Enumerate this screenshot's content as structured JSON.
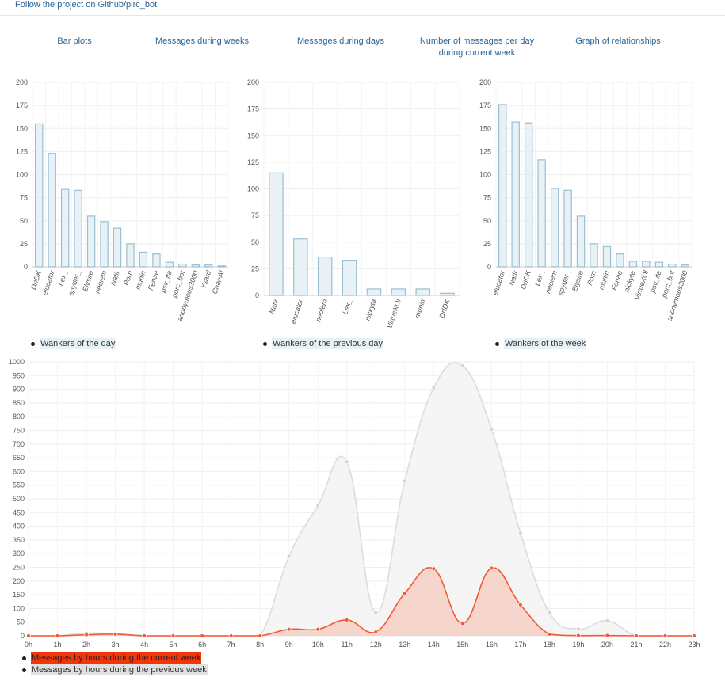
{
  "header": {
    "follow_link": "Follow the project on Github/pirc_bot"
  },
  "nav": {
    "bar_plots": "Bar plots",
    "weeks": "Messages during weeks",
    "days": "Messages during days",
    "per_day_line1": "Number of messages per day",
    "per_day_line2": "during current week",
    "relationships": "Graph of relationships"
  },
  "colors": {
    "bar_fill": "#e8f1f6",
    "bar_stroke": "#9bbfd2",
    "current_week": "#f15a35",
    "current_week_fill": "#f6cfc4",
    "previous_week": "#dcdcdc",
    "previous_week_fill": "#f2f2f2",
    "grid": "#eeeeee"
  },
  "chart_data": [
    {
      "type": "bar",
      "legend": "Wankers of the day",
      "categories": [
        "DrIDK",
        "elucator",
        "Lex_",
        "spyder_",
        "Elysire",
        "neolem",
        "Natir",
        "Porn",
        "munin",
        "Fenae",
        "psv_ita",
        "porc_bot",
        "anonymous3000",
        "Ysard",
        "Char-Al"
      ],
      "values": [
        155,
        123,
        84,
        83,
        55,
        49,
        42,
        25,
        16,
        14,
        5,
        3,
        2,
        2,
        1
      ],
      "ylim": [
        0,
        200
      ],
      "yticks": [
        "0",
        "25",
        "50",
        "75",
        "100",
        "125",
        "150",
        "175",
        "200"
      ]
    },
    {
      "type": "bar",
      "legend": "Wankers of the previous day",
      "categories": [
        "Natir",
        "elucator",
        "neolem",
        "Lex_",
        "nickyta",
        "VirtueXOl",
        "munin",
        "DrIDK"
      ],
      "values": [
        115,
        53,
        36,
        33,
        6,
        6,
        6,
        2
      ],
      "ylim": [
        0,
        200
      ],
      "yticks": [
        "0",
        "25",
        "50",
        "75",
        "100",
        "125",
        "150",
        "175",
        "200"
      ]
    },
    {
      "type": "bar",
      "legend": "Wankers of the week",
      "categories": [
        "elucator",
        "Natir",
        "DrIDK",
        "Lex_",
        "neolem",
        "spyder_",
        "Elysire",
        "Porn",
        "munin",
        "Fenae",
        "nickyta",
        "VirtueXOl",
        "psv_ita",
        "porc_bot",
        "anonymous3000"
      ],
      "values": [
        176,
        157,
        156,
        116,
        85,
        83,
        55,
        25,
        22,
        14,
        6,
        6,
        5,
        3,
        2
      ],
      "ylim": [
        0,
        200
      ],
      "yticks": [
        "0",
        "25",
        "50",
        "75",
        "100",
        "125",
        "150",
        "175",
        "200"
      ]
    },
    {
      "type": "area",
      "categories": [
        "0h",
        "1h",
        "2h",
        "3h",
        "4h",
        "5h",
        "6h",
        "7h",
        "8h",
        "9h",
        "10h",
        "11h",
        "12h",
        "13h",
        "14h",
        "15h",
        "16h",
        "17h",
        "18h",
        "19h",
        "20h",
        "21h",
        "22h",
        "23h"
      ],
      "series": [
        {
          "name": "Messages by hours during the current week",
          "values": [
            0,
            0,
            4,
            6,
            0,
            0,
            0,
            0,
            0,
            24,
            24,
            58,
            14,
            155,
            245,
            45,
            247,
            113,
            6,
            1,
            1,
            0,
            0,
            0
          ]
        },
        {
          "name": "Messages by hours during the previous week",
          "values": [
            0,
            0,
            10,
            8,
            0,
            0,
            0,
            0,
            0,
            290,
            475,
            635,
            85,
            565,
            905,
            985,
            755,
            375,
            85,
            25,
            55,
            0,
            0,
            0
          ]
        }
      ],
      "ylim": [
        0,
        1000
      ],
      "yticks": [
        "0",
        "50",
        "100",
        "150",
        "200",
        "250",
        "300",
        "350",
        "400",
        "450",
        "500",
        "550",
        "600",
        "650",
        "700",
        "750",
        "800",
        "850",
        "900",
        "950",
        "1000"
      ]
    }
  ]
}
